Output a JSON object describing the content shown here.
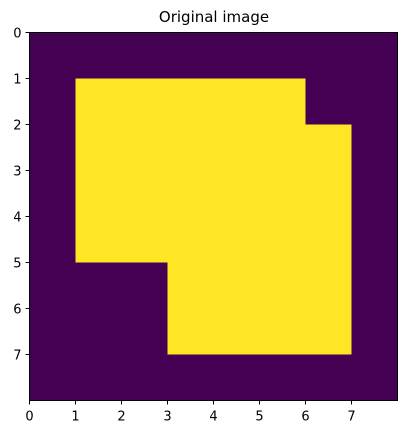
{
  "chart_data": {
    "type": "heatmap",
    "title": "Original image",
    "xlabel": "",
    "ylabel": "",
    "x_ticks": [
      "0",
      "1",
      "2",
      "3",
      "4",
      "5",
      "6",
      "7"
    ],
    "y_ticks": [
      "0",
      "1",
      "2",
      "3",
      "4",
      "5",
      "6",
      "7"
    ],
    "grid": false,
    "colormap": "viridis",
    "colors": {
      "low": "#440154",
      "high": "#fde725"
    },
    "matrix": [
      [
        0,
        0,
        0,
        0,
        0,
        0,
        0,
        0
      ],
      [
        0,
        1,
        1,
        1,
        1,
        1,
        0,
        0
      ],
      [
        0,
        1,
        1,
        1,
        1,
        1,
        1,
        0
      ],
      [
        0,
        1,
        1,
        1,
        1,
        1,
        1,
        0
      ],
      [
        0,
        1,
        1,
        1,
        1,
        1,
        1,
        0
      ],
      [
        0,
        0,
        0,
        1,
        1,
        1,
        1,
        0
      ],
      [
        0,
        0,
        0,
        1,
        1,
        1,
        1,
        0
      ],
      [
        0,
        0,
        0,
        0,
        0,
        0,
        0,
        0
      ]
    ]
  }
}
